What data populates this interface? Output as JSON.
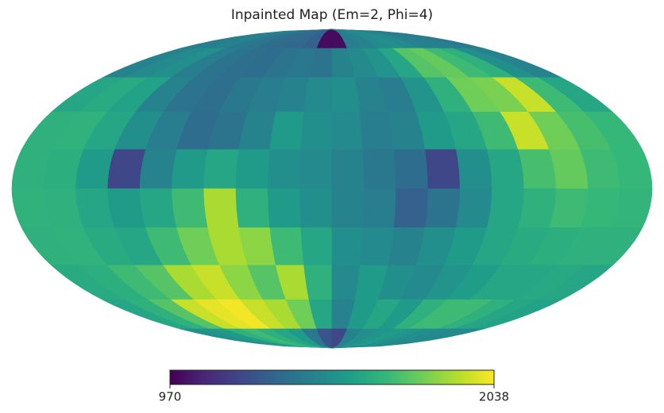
{
  "chart_data": {
    "type": "mollweide",
    "title": "Inpainted Map (Em=2, Phi=4)",
    "colormap": "viridis",
    "clim": [
      970,
      2038
    ],
    "colorbar_ticks": [
      970,
      2038
    ],
    "values": [
      [
        1420,
        1430,
        1440,
        1400,
        1380,
        1350,
        1340,
        1330,
        1300,
        1000,
        1000,
        1420,
        1450,
        1480,
        1500,
        1480,
        1450,
        1430,
        1420,
        1410
      ],
      [
        1450,
        1480,
        1500,
        1420,
        1380,
        1360,
        1350,
        1380,
        1400,
        1380,
        1450,
        1480,
        1520,
        1600,
        1750,
        1780,
        1700,
        1650,
        1500,
        1450
      ],
      [
        1600,
        1620,
        1580,
        1450,
        1380,
        1360,
        1400,
        1420,
        1450,
        1480,
        1500,
        1450,
        1420,
        1520,
        1650,
        1800,
        1820,
        1950,
        1700,
        1600
      ],
      [
        1650,
        1660,
        1600,
        1500,
        1420,
        1350,
        1380,
        1450,
        1550,
        1500,
        1480,
        1420,
        1450,
        1550,
        1600,
        1700,
        1950,
        1800,
        1720,
        1680
      ],
      [
        1650,
        1640,
        1550,
        1200,
        1450,
        1550,
        1600,
        1550,
        1500,
        1480,
        1450,
        1400,
        1350,
        1200,
        1500,
        1600,
        1720,
        1780,
        1700,
        1680
      ],
      [
        1660,
        1650,
        1600,
        1550,
        1600,
        1700,
        1900,
        1650,
        1550,
        1500,
        1450,
        1420,
        1300,
        1380,
        1480,
        1600,
        1650,
        1700,
        1680,
        1670
      ],
      [
        1650,
        1660,
        1620,
        1600,
        1700,
        1800,
        1900,
        1850,
        1700,
        1600,
        1500,
        1480,
        1450,
        1500,
        1550,
        1600,
        1620,
        1640,
        1650,
        1650
      ],
      [
        1620,
        1640,
        1700,
        1750,
        1900,
        1950,
        1850,
        1750,
        1900,
        1650,
        1480,
        1550,
        1500,
        1480,
        1520,
        1560,
        1600,
        1600,
        1610,
        1600
      ],
      [
        1600,
        1650,
        1750,
        1950,
        2000,
        2020,
        1950,
        1900,
        1800,
        1600,
        1450,
        1550,
        1600,
        1550,
        1650,
        1700,
        1700,
        1650,
        1600,
        1580
      ],
      [
        1500,
        1520,
        1550,
        1650,
        1700,
        1650,
        1600,
        1550,
        1400,
        1250,
        1200,
        1450,
        1500,
        1520,
        1550,
        1520,
        1500,
        1480,
        1470,
        1470
      ]
    ]
  }
}
